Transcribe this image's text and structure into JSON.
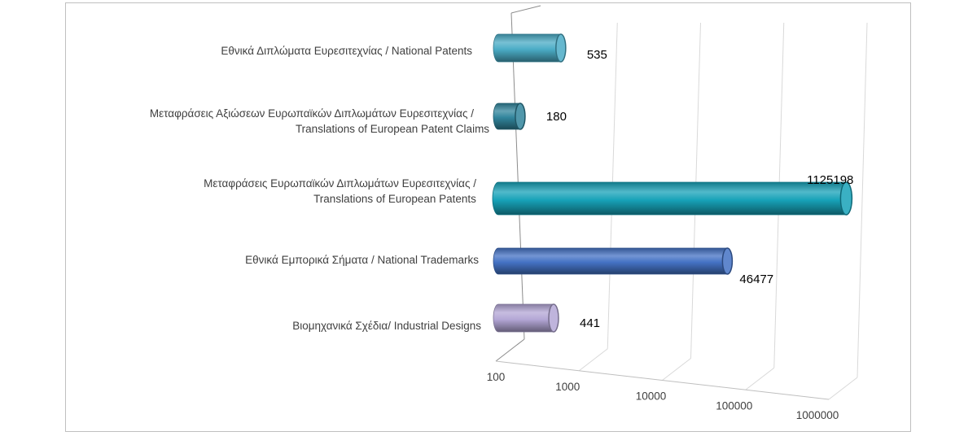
{
  "chart_data": {
    "type": "bar",
    "orientation": "horizontal",
    "style": "3d-cylinder",
    "x_scale": "log",
    "xlim": [
      100,
      1000000
    ],
    "x_ticks": [
      "100",
      "1000",
      "10000",
      "100000",
      "1000000"
    ],
    "grid": true,
    "legend": "none",
    "categories": [
      [
        "Εθνικά Διπλώματα Ευρεσιτεχνίας / National Patents"
      ],
      [
        "Μεταφράσεις Αξιώσεων Ευρωπαϊκών Διπλωμάτων Ευρεσιτεχνίας /",
        "Translations of European Patent Claims"
      ],
      [
        "Μεταφράσεις Ευρωπαϊκών Διπλωμάτων Ευρεσιτεχνίας /",
        "Translations of European Patents"
      ],
      [
        "Εθνικά Εμπορικά Σήματα / National Trademarks"
      ],
      [
        "Βιομηχανικά Σχέδια/ Industrial Designs"
      ]
    ],
    "values": [
      535,
      180,
      1125198,
      46477,
      441
    ],
    "value_labels": [
      "535",
      "180",
      "1125198",
      "46477",
      "441"
    ],
    "colors": [
      "#4bacc6",
      "#31859c",
      "#17a2b8",
      "#4472c4",
      "#b4a7d6"
    ]
  }
}
